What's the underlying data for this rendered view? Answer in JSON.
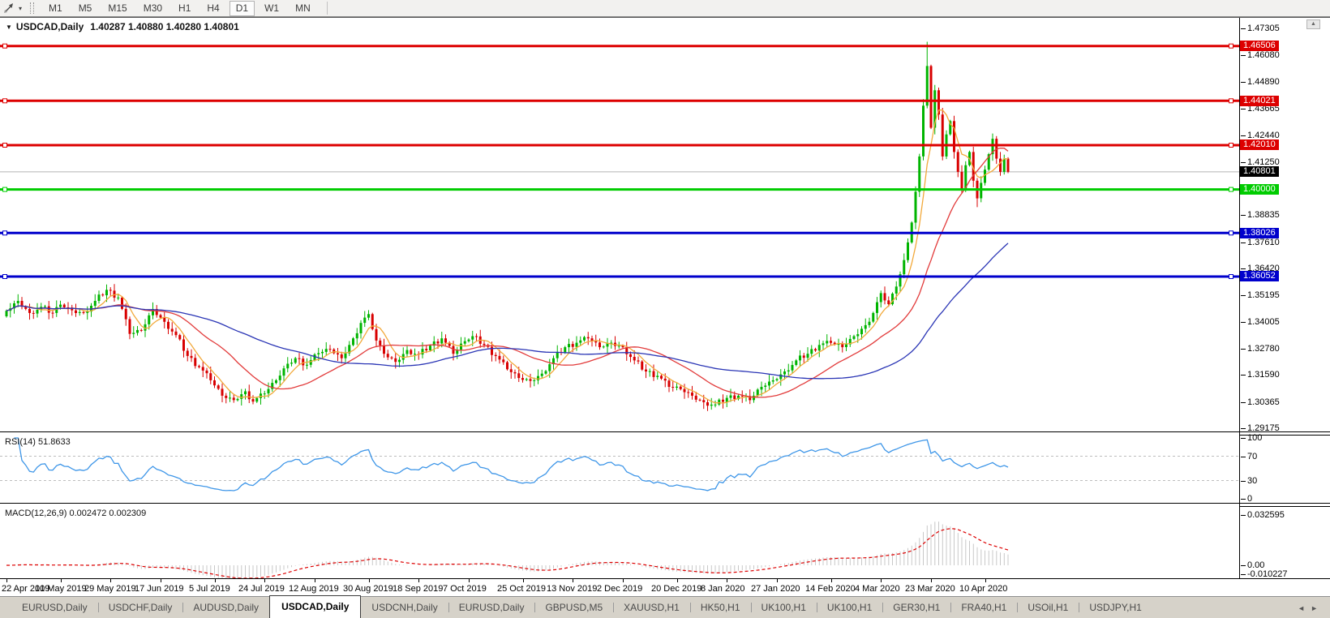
{
  "icons": {
    "dropdown_caret": "▾",
    "title_marker": "▼",
    "scroll_up": "▲",
    "tab_scroll_left": "◄",
    "tab_scroll_right": "►"
  },
  "toolbar": {
    "timeframes": [
      "M1",
      "M5",
      "M15",
      "M30",
      "H1",
      "H4",
      "D1",
      "W1",
      "MN"
    ],
    "active_timeframe": "D1"
  },
  "chart": {
    "title": "USDCAD,Daily",
    "ohlc": "1.40287 1.40880 1.40280 1.40801",
    "current_price": 1.40801,
    "current_price_line_color": "#b4b4b4",
    "hlines": [
      {
        "price": 1.46506,
        "color": "#dd0000"
      },
      {
        "price": 1.44021,
        "color": "#dd0000"
      },
      {
        "price": 1.4201,
        "color": "#dd0000"
      },
      {
        "price": 1.4,
        "color": "#00cc00"
      },
      {
        "price": 1.38026,
        "color": "#0000cc"
      },
      {
        "price": 1.36052,
        "color": "#0000cc"
      }
    ],
    "price_axis_ticks": [
      "1.47305",
      "1.46080",
      "1.44890",
      "1.43665",
      "1.42440",
      "1.41250",
      "1.38835",
      "1.37610",
      "1.36420",
      "1.35195",
      "1.34005",
      "1.32780",
      "1.31590",
      "1.30365",
      "1.29175"
    ],
    "price_axis_badges": [
      {
        "text": "1.46506",
        "bg": "#dd0000",
        "fg": "#ffffff"
      },
      {
        "text": "1.44021",
        "bg": "#dd0000",
        "fg": "#ffffff"
      },
      {
        "text": "1.42010",
        "bg": "#dd0000",
        "fg": "#ffffff"
      },
      {
        "text": "1.40801",
        "bg": "#000000",
        "fg": "#ffffff"
      },
      {
        "text": "1.40000",
        "bg": "#00cc00",
        "fg": "#ffffff"
      },
      {
        "text": "1.38026",
        "bg": "#0000cc",
        "fg": "#ffffff"
      },
      {
        "text": "1.36052",
        "bg": "#0000cc",
        "fg": "#ffffff"
      }
    ]
  },
  "rsi": {
    "label": "RSI(14) 51.8633",
    "period": 14,
    "value": 51.8633,
    "axis_ticks": [
      "100",
      "70",
      "30",
      "0"
    ],
    "guide_levels": [
      70,
      30
    ],
    "line_color": "#3e96e8"
  },
  "macd": {
    "label": "MACD(12,26,9) 0.002472 0.002309",
    "main_value": 0.002472,
    "signal_value": 0.002309,
    "axis_ticks": [
      "0.032595",
      "0.00",
      "-0.010227"
    ],
    "histogram_color": "#c8c8c8",
    "signal_color": "#dd0000"
  },
  "chart_data": {
    "type": "candlestick",
    "symbol": "USDCAD",
    "timeframe": "Daily",
    "price_range": {
      "top": 1.47305,
      "bottom": 1.29175
    },
    "up_color": "#00b400",
    "down_color": "#d80000",
    "x_labels": [
      "22 Apr 2019",
      "10 May 2019",
      "29 May 2019",
      "17 Jun 2019",
      "5 Jul 2019",
      "24 Jul 2019",
      "12 Aug 2019",
      "30 Aug 2019",
      "18 Sep 2019",
      "7 Oct 2019",
      "25 Oct 2019",
      "13 Nov 2019",
      "2 Dec 2019",
      "20 Dec 2019",
      "8 Jan 2020",
      "27 Jan 2020",
      "14 Feb 2020",
      "4 Mar 2020",
      "23 Mar 2020",
      "10 Apr 2020"
    ],
    "x_label_days": [
      0,
      14,
      27,
      40,
      54,
      67,
      80,
      94,
      107,
      120,
      134,
      147,
      160,
      174,
      187,
      200,
      214,
      227,
      240,
      254
    ],
    "close_anchors": [
      [
        0,
        1.345
      ],
      [
        3,
        1.3495
      ],
      [
        6,
        1.344
      ],
      [
        9,
        1.3468
      ],
      [
        12,
        1.344
      ],
      [
        14,
        1.3478
      ],
      [
        17,
        1.3452
      ],
      [
        20,
        1.344
      ],
      [
        23,
        1.3495
      ],
      [
        26,
        1.3545
      ],
      [
        29,
        1.351
      ],
      [
        32,
        1.3345
      ],
      [
        35,
        1.336
      ],
      [
        38,
        1.3458
      ],
      [
        41,
        1.34
      ],
      [
        44,
        1.334
      ],
      [
        47,
        1.3245
      ],
      [
        50,
        1.3195
      ],
      [
        53,
        1.3135
      ],
      [
        56,
        1.3065
      ],
      [
        59,
        1.3045
      ],
      [
        62,
        1.3085
      ],
      [
        64,
        1.3038
      ],
      [
        67,
        1.3075
      ],
      [
        70,
        1.3135
      ],
      [
        73,
        1.321
      ],
      [
        75,
        1.3235
      ],
      [
        78,
        1.3205
      ],
      [
        81,
        1.3258
      ],
      [
        84,
        1.3275
      ],
      [
        87,
        1.3235
      ],
      [
        90,
        1.3325
      ],
      [
        92,
        1.3395
      ],
      [
        94,
        1.3435
      ],
      [
        96,
        1.3315
      ],
      [
        98,
        1.3255
      ],
      [
        101,
        1.3218
      ],
      [
        104,
        1.3272
      ],
      [
        107,
        1.3252
      ],
      [
        110,
        1.3292
      ],
      [
        113,
        1.3325
      ],
      [
        116,
        1.3255
      ],
      [
        119,
        1.3312
      ],
      [
        121,
        1.3335
      ],
      [
        124,
        1.3295
      ],
      [
        127,
        1.3245
      ],
      [
        130,
        1.3185
      ],
      [
        133,
        1.3145
      ],
      [
        136,
        1.3132
      ],
      [
        139,
        1.3165
      ],
      [
        142,
        1.3235
      ],
      [
        145,
        1.3285
      ],
      [
        148,
        1.3305
      ],
      [
        151,
        1.3325
      ],
      [
        154,
        1.3285
      ],
      [
        157,
        1.3305
      ],
      [
        160,
        1.3285
      ],
      [
        163,
        1.3225
      ],
      [
        166,
        1.3175
      ],
      [
        169,
        1.3155
      ],
      [
        172,
        1.3105
      ],
      [
        175,
        1.3095
      ],
      [
        178,
        1.3065
      ],
      [
        181,
        1.3035
      ],
      [
        184,
        1.3025
      ],
      [
        187,
        1.3055
      ],
      [
        190,
        1.3065
      ],
      [
        193,
        1.3045
      ],
      [
        196,
        1.3105
      ],
      [
        199,
        1.3135
      ],
      [
        202,
        1.3175
      ],
      [
        205,
        1.3225
      ],
      [
        208,
        1.3255
      ],
      [
        211,
        1.3295
      ],
      [
        214,
        1.3305
      ],
      [
        217,
        1.3285
      ],
      [
        220,
        1.3335
      ],
      [
        223,
        1.3385
      ],
      [
        225,
        1.344
      ],
      [
        227,
        1.353
      ],
      [
        229,
        1.348
      ],
      [
        231,
        1.356
      ],
      [
        233,
        1.368
      ],
      [
        234,
        1.376
      ],
      [
        235,
        1.385
      ],
      [
        236,
        1.399
      ],
      [
        237,
        1.415
      ],
      [
        238,
        1.438
      ],
      [
        239,
        1.456
      ],
      [
        240,
        1.428
      ],
      [
        241,
        1.445
      ],
      [
        242,
        1.434
      ],
      [
        243,
        1.415
      ],
      [
        244,
        1.425
      ],
      [
        245,
        1.431
      ],
      [
        246,
        1.417
      ],
      [
        247,
        1.408
      ],
      [
        248,
        1.4
      ],
      [
        249,
        1.411
      ],
      [
        250,
        1.417
      ],
      [
        251,
        1.404
      ],
      [
        252,
        1.396
      ],
      [
        253,
        1.403
      ],
      [
        254,
        1.409
      ],
      [
        255,
        1.416
      ],
      [
        256,
        1.423
      ],
      [
        257,
        1.414
      ],
      [
        258,
        1.408
      ],
      [
        259,
        1.414
      ],
      [
        260,
        1.408
      ]
    ],
    "wick_overrides": [
      {
        "day": 239,
        "high": 1.467
      },
      {
        "day": 252,
        "low": 1.392
      }
    ],
    "moving_averages": [
      {
        "period": 6,
        "color": "#f2a93b"
      },
      {
        "period": 22,
        "color": "#e23b3b"
      },
      {
        "period": 55,
        "color": "#2a35b5"
      }
    ]
  },
  "tabs": {
    "items": [
      "EURUSD,Daily",
      "USDCHF,Daily",
      "AUDUSD,Daily",
      "USDCAD,Daily",
      "USDCNH,Daily",
      "EURUSD,Daily",
      "GBPUSD,M5",
      "XAUUSD,H1",
      "HK50,H1",
      "UK100,H1",
      "UK100,H1",
      "GER30,H1",
      "FRA40,H1",
      "USOil,H1",
      "USDJPY,H1"
    ],
    "active_index": 3
  }
}
